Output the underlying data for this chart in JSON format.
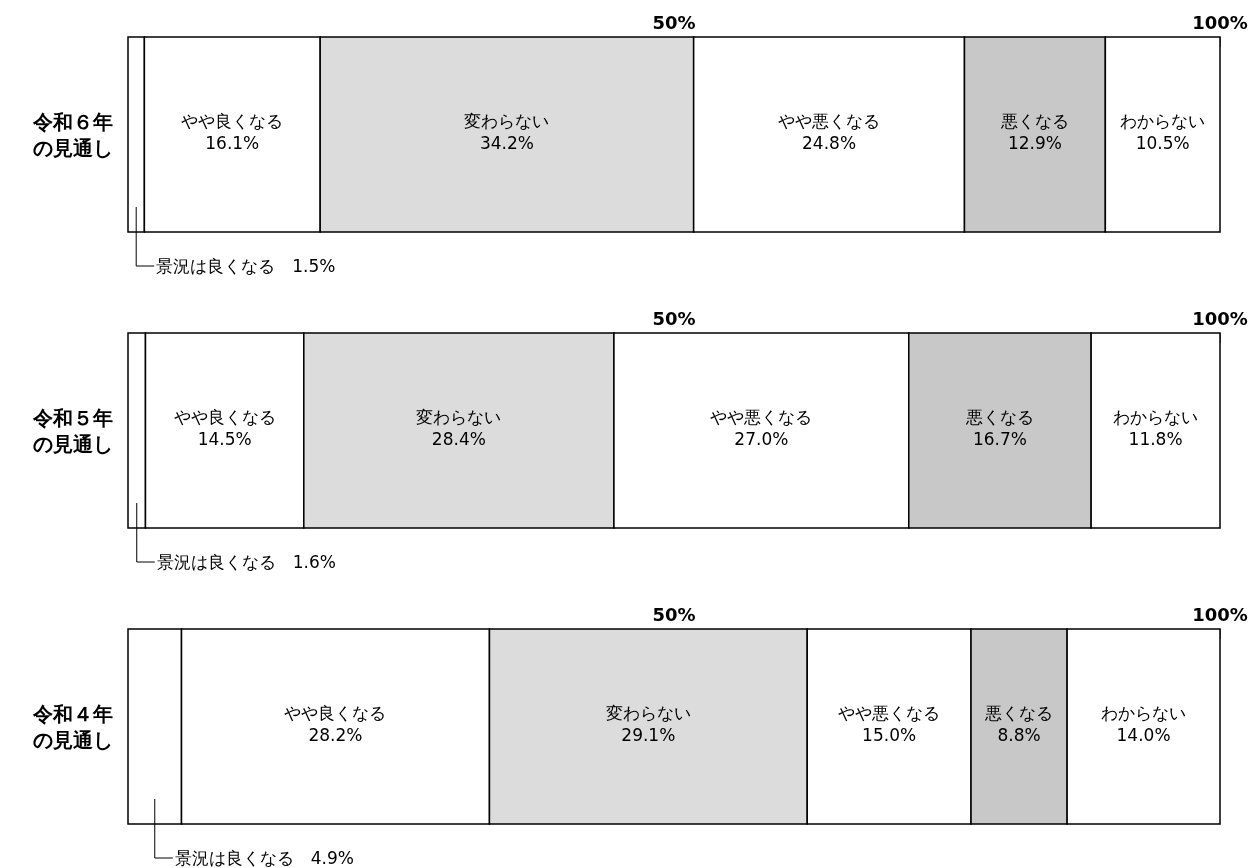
{
  "chart_data": {
    "type": "bar",
    "orientation": "horizontal",
    "stacked": true,
    "categories": [
      "令和６年の見通し",
      "令和５年の見通し",
      "令和４年の見通し"
    ],
    "series": [
      {
        "name": "景況は良くなる",
        "color": "#ffffff",
        "values": [
          1.5,
          1.6,
          4.9
        ],
        "value_labels": [
          "1.5%",
          "1.6%",
          "4.9%"
        ]
      },
      {
        "name": "やや良くなる",
        "color": "#ffffff",
        "values": [
          16.1,
          14.5,
          28.2
        ],
        "value_labels": [
          "16.1%",
          "14.5%",
          "28.2%"
        ]
      },
      {
        "name": "変わらない",
        "color": "#dcdcdc",
        "values": [
          34.2,
          28.4,
          29.1
        ],
        "value_labels": [
          "34.2%",
          "28.4%",
          "29.1%"
        ]
      },
      {
        "name": "やや悪くなる",
        "color": "#ffffff",
        "values": [
          24.8,
          27.0,
          15.0
        ],
        "value_labels": [
          "24.8%",
          "27.0%",
          "15.0%"
        ]
      },
      {
        "name": "悪くなる",
        "color": "#c8c8c8",
        "values": [
          12.9,
          16.7,
          8.8
        ],
        "value_labels": [
          "12.9%",
          "16.7%",
          "8.8%"
        ]
      },
      {
        "name": "わからない",
        "color": "#ffffff",
        "values": [
          10.5,
          11.8,
          14.0
        ],
        "value_labels": [
          "10.5%",
          "11.8%",
          "14.0%"
        ]
      }
    ],
    "xlim": [
      0,
      100
    ],
    "xticks": [
      {
        "value": 50,
        "label": "50%"
      },
      {
        "value": 100,
        "label": "100%"
      }
    ],
    "legend": false,
    "grid": false
  }
}
